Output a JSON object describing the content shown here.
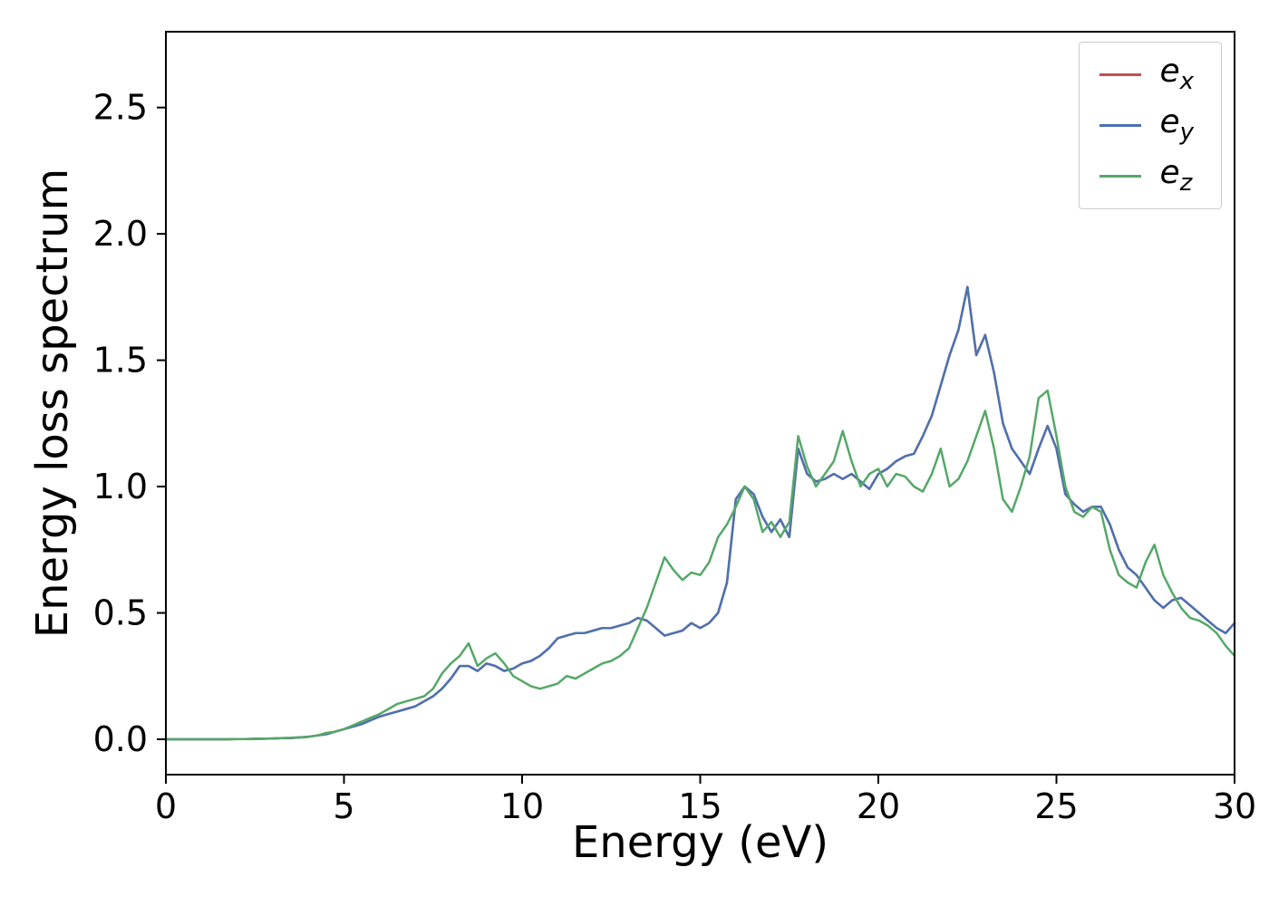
{
  "figure": {
    "background": "#ffffff",
    "spine_color": "#000000"
  },
  "chart_data": {
    "type": "line",
    "title": "",
    "xlabel": "Energy (eV)",
    "ylabel": "Energy loss spectrum",
    "xlim": [
      0,
      30
    ],
    "ylim": [
      -0.14,
      2.8
    ],
    "xticks": [
      0,
      5,
      10,
      15,
      20,
      25,
      30
    ],
    "yticks": [
      0.0,
      0.5,
      1.0,
      1.5,
      2.0,
      2.5
    ],
    "grid": false,
    "legend_position": "upper right",
    "x_start": 0,
    "x_step": 0.25,
    "x_count": 121,
    "series": [
      {
        "name": "e_x",
        "label_base": "e",
        "label_sub": "x",
        "color": "#c44e52",
        "note": "coincides with e_y, hidden beneath it",
        "values": [
          0,
          0,
          0,
          0,
          0,
          0,
          0,
          0,
          0.001,
          0.001,
          0.002,
          0.002,
          0.003,
          0.004,
          0.005,
          0.007,
          0.01,
          0.015,
          0.02,
          0.03,
          0.04,
          0.05,
          0.06,
          0.075,
          0.09,
          0.1,
          0.11,
          0.12,
          0.13,
          0.15,
          0.17,
          0.2,
          0.24,
          0.29,
          0.29,
          0.27,
          0.3,
          0.29,
          0.27,
          0.28,
          0.3,
          0.31,
          0.33,
          0.36,
          0.4,
          0.41,
          0.42,
          0.42,
          0.43,
          0.44,
          0.44,
          0.45,
          0.46,
          0.48,
          0.47,
          0.44,
          0.41,
          0.42,
          0.43,
          0.46,
          0.44,
          0.46,
          0.5,
          0.62,
          0.95,
          1.0,
          0.97,
          0.88,
          0.82,
          0.87,
          0.8,
          1.15,
          1.05,
          1.02,
          1.03,
          1.05,
          1.03,
          1.05,
          1.02,
          0.99,
          1.05,
          1.07,
          1.1,
          1.12,
          1.13,
          1.2,
          1.28,
          1.4,
          1.52,
          1.62,
          1.79,
          1.52,
          1.6,
          1.45,
          1.25,
          1.15,
          1.1,
          1.05,
          1.15,
          1.24,
          1.15,
          0.97,
          0.93,
          0.9,
          0.92,
          0.92,
          0.85,
          0.75,
          0.68,
          0.65,
          0.6,
          0.55,
          0.52,
          0.55,
          0.56,
          0.53,
          0.5,
          0.47,
          0.44,
          0.42,
          0.46
        ]
      },
      {
        "name": "e_y",
        "label_base": "e",
        "label_sub": "y",
        "color": "#4c72b0",
        "values": [
          0,
          0,
          0,
          0,
          0,
          0,
          0,
          0,
          0.001,
          0.001,
          0.002,
          0.002,
          0.003,
          0.004,
          0.005,
          0.007,
          0.01,
          0.015,
          0.02,
          0.03,
          0.04,
          0.05,
          0.06,
          0.075,
          0.09,
          0.1,
          0.11,
          0.12,
          0.13,
          0.15,
          0.17,
          0.2,
          0.24,
          0.29,
          0.29,
          0.27,
          0.3,
          0.29,
          0.27,
          0.28,
          0.3,
          0.31,
          0.33,
          0.36,
          0.4,
          0.41,
          0.42,
          0.42,
          0.43,
          0.44,
          0.44,
          0.45,
          0.46,
          0.48,
          0.47,
          0.44,
          0.41,
          0.42,
          0.43,
          0.46,
          0.44,
          0.46,
          0.5,
          0.62,
          0.95,
          1.0,
          0.97,
          0.88,
          0.82,
          0.87,
          0.8,
          1.15,
          1.05,
          1.02,
          1.03,
          1.05,
          1.03,
          1.05,
          1.02,
          0.99,
          1.05,
          1.07,
          1.1,
          1.12,
          1.13,
          1.2,
          1.28,
          1.4,
          1.52,
          1.62,
          1.79,
          1.52,
          1.6,
          1.45,
          1.25,
          1.15,
          1.1,
          1.05,
          1.15,
          1.24,
          1.15,
          0.97,
          0.93,
          0.9,
          0.92,
          0.92,
          0.85,
          0.75,
          0.68,
          0.65,
          0.6,
          0.55,
          0.52,
          0.55,
          0.56,
          0.53,
          0.5,
          0.47,
          0.44,
          0.42,
          0.46
        ]
      },
      {
        "name": "e_z",
        "label_base": "e",
        "label_sub": "z",
        "color": "#55a868",
        "values": [
          0,
          0,
          0,
          0,
          0,
          0,
          0,
          0,
          0.001,
          0.001,
          0.001,
          0.002,
          0.003,
          0.005,
          0.006,
          0.008,
          0.01,
          0.015,
          0.025,
          0.03,
          0.04,
          0.055,
          0.07,
          0.085,
          0.1,
          0.12,
          0.14,
          0.15,
          0.16,
          0.17,
          0.2,
          0.26,
          0.3,
          0.33,
          0.38,
          0.29,
          0.32,
          0.34,
          0.3,
          0.25,
          0.23,
          0.21,
          0.2,
          0.21,
          0.22,
          0.25,
          0.24,
          0.26,
          0.28,
          0.3,
          0.31,
          0.33,
          0.36,
          0.44,
          0.52,
          0.62,
          0.72,
          0.67,
          0.63,
          0.66,
          0.65,
          0.7,
          0.8,
          0.85,
          0.92,
          1.0,
          0.95,
          0.82,
          0.86,
          0.8,
          0.86,
          1.2,
          1.08,
          1.0,
          1.05,
          1.1,
          1.22,
          1.1,
          1.0,
          1.05,
          1.07,
          1.0,
          1.05,
          1.04,
          1.0,
          0.98,
          1.05,
          1.15,
          1.0,
          1.03,
          1.1,
          1.2,
          1.3,
          1.15,
          0.95,
          0.9,
          1.0,
          1.12,
          1.35,
          1.38,
          1.2,
          1.0,
          0.9,
          0.88,
          0.92,
          0.9,
          0.75,
          0.65,
          0.62,
          0.6,
          0.7,
          0.77,
          0.65,
          0.58,
          0.52,
          0.48,
          0.47,
          0.45,
          0.42,
          0.37,
          0.33
        ]
      }
    ]
  }
}
